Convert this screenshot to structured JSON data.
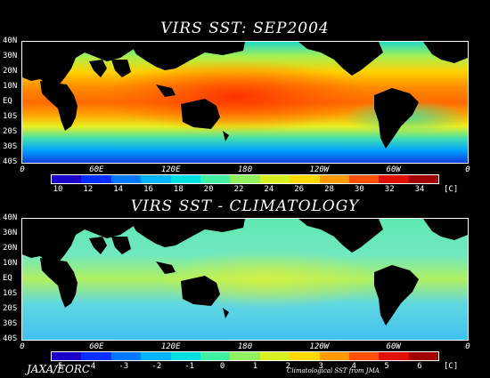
{
  "top_panel": {
    "title": "VIRS SST: SEP2004",
    "lat_labels": [
      "40N",
      "30N",
      "20N",
      "10N",
      "EQ",
      "10S",
      "20S",
      "30S",
      "40S"
    ],
    "lon_labels": [
      "0",
      "60E",
      "120E",
      "180",
      "120W",
      "60W",
      "0"
    ],
    "colorbar_labels": [
      "10",
      "12",
      "14",
      "16",
      "18",
      "20",
      "22",
      "24",
      "26",
      "28",
      "30",
      "32",
      "34"
    ],
    "unit": "[C]",
    "colorbar_colors": [
      "#1a00c8",
      "#0030ff",
      "#0078ff",
      "#00b4ff",
      "#00e0e0",
      "#40f0a0",
      "#90f060",
      "#d8f020",
      "#ffd800",
      "#ff9a00",
      "#ff5000",
      "#e01000",
      "#a00000"
    ]
  },
  "bottom_panel": {
    "title": "VIRS SST - CLIMATOLOGY",
    "lat_labels": [
      "40N",
      "30N",
      "20N",
      "10N",
      "EQ",
      "10S",
      "20S",
      "30S",
      "40S"
    ],
    "lon_labels": [
      "0",
      "60E",
      "120E",
      "180",
      "120W",
      "60W",
      "0"
    ],
    "colorbar_labels": [
      "-5",
      "-4",
      "-3",
      "-2",
      "-1",
      "0",
      "1",
      "2",
      "3",
      "4",
      "5",
      "6"
    ],
    "unit": "[C]",
    "colorbar_colors": [
      "#1a00c8",
      "#0030ff",
      "#0078ff",
      "#00b4ff",
      "#00e0e0",
      "#40f0a0",
      "#90f060",
      "#d8f020",
      "#ffd800",
      "#ff9a00",
      "#ff5000",
      "#e01000",
      "#a00000"
    ]
  },
  "credits": {
    "left": "JAXA/EORC",
    "right": "Climatological SST from JMA"
  },
  "colors": {
    "land": "#000000",
    "background": "#000000"
  }
}
